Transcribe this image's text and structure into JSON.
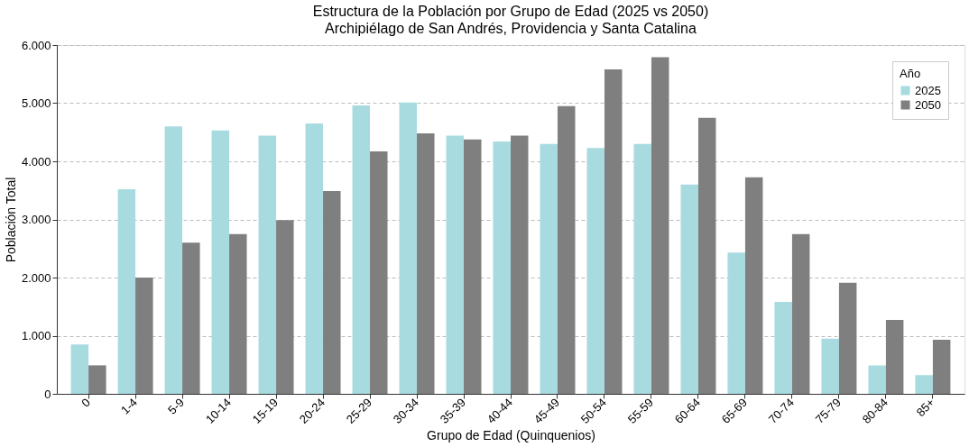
{
  "chart_data": {
    "type": "bar",
    "title": "Estructura de la Población por Grupo de Edad (2025 vs 2050)",
    "subtitle": "Archipiélago de San Andrés, Providencia y Santa Catalina",
    "xlabel": "Grupo de Edad (Quinquenios)",
    "ylabel": "Población Total",
    "legend_title": "Año",
    "categories": [
      "0",
      "1-4",
      "5-9",
      "10-14",
      "15-19",
      "20-24",
      "25-29",
      "30-34",
      "35-39",
      "40-44",
      "45-49",
      "50-54",
      "55-59",
      "60-64",
      "65-69",
      "70-74",
      "75-79",
      "80-84",
      "85+"
    ],
    "series": [
      {
        "name": "2025",
        "color": "#a8dbe0",
        "values": [
          850,
          3520,
          4600,
          4530,
          4440,
          4650,
          4960,
          5010,
          4440,
          4340,
          4300,
          4230,
          4300,
          3600,
          2430,
          1580,
          950,
          490,
          320
        ]
      },
      {
        "name": "2050",
        "color": "#7f7f7f",
        "values": [
          490,
          2000,
          2600,
          2750,
          2990,
          3490,
          4170,
          4480,
          4375,
          4440,
          4950,
          5580,
          5790,
          4750,
          3725,
          2750,
          1910,
          1270,
          930
        ]
      }
    ],
    "ylim": [
      0,
      6000
    ],
    "yticks": [
      0,
      {
        "value": 1000,
        "label": "1.000"
      },
      {
        "value": 2000,
        "label": "2.000"
      },
      {
        "value": 3000,
        "label": "3.000"
      },
      {
        "value": 4000,
        "label": "4.000"
      },
      {
        "value": 5000,
        "label": "5.000"
      },
      {
        "value": 6000,
        "label": "6.000"
      }
    ],
    "grid": "y",
    "legend": "top right"
  }
}
